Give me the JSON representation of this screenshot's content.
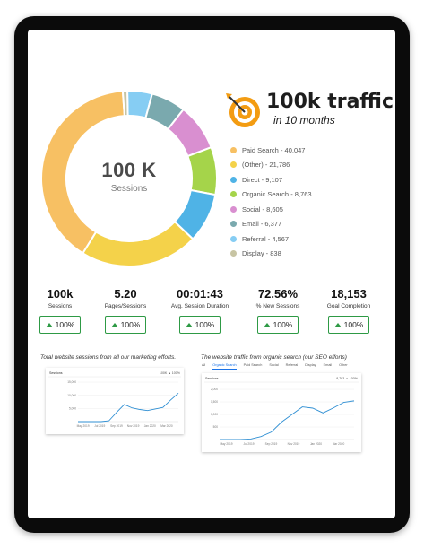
{
  "donut": {
    "center_value": "100 K",
    "center_label": "Sessions",
    "segments": [
      {
        "label": "Paid Search - 40,047",
        "value": 40047,
        "color": "#f7c063"
      },
      {
        "label": "(Other) - 21,786",
        "value": 21786,
        "color": "#f4d24a"
      },
      {
        "label": "Direct - 9,107",
        "value": 9107,
        "color": "#4fb3e6"
      },
      {
        "label": "Organic Search - 8,763",
        "value": 8763,
        "color": "#a5d44a"
      },
      {
        "label": "Social - 8,605",
        "value": 8605,
        "color": "#d98fd0"
      },
      {
        "label": "Email - 6,377",
        "value": 6377,
        "color": "#7aa9ae"
      },
      {
        "label": "Referral - 4,567",
        "value": 4567,
        "color": "#86cdf3"
      },
      {
        "label": "Display - 838",
        "value": 838,
        "color": "#c7c4a3"
      }
    ]
  },
  "logo": {
    "title": "100k traffic",
    "subtitle": "in 10 months",
    "accent": "#f39c12"
  },
  "stats": [
    {
      "value": "100k",
      "label": "Sessions",
      "change": "100%"
    },
    {
      "value": "5.20",
      "label": "Pages/Sessions",
      "change": "100%"
    },
    {
      "value": "00:01:43",
      "label": "Avg. Session Duration",
      "change": "100%"
    },
    {
      "value": "72.56%",
      "label": "% New Sessions",
      "change": "100%"
    },
    {
      "value": "18,153",
      "label": "Goal Completion",
      "change": "100%"
    }
  ],
  "captions": {
    "left": "Total website sessions from all our marketing efforts.",
    "right": "The website traffic from organic search (our SEO efforts)"
  },
  "chart_data": [
    {
      "type": "line",
      "title": "",
      "header_left": "Sessions",
      "header_right": "100K ▲ 100%",
      "ytick_labels": [
        "15,000",
        "10,000",
        "5,000"
      ],
      "ylim": [
        0,
        15000
      ],
      "xtick_labels": [
        "May 2019",
        "Jul 2019",
        "Sep 2019",
        "Nov 2019",
        "Jan 2020",
        "Mar 2020"
      ],
      "series": [
        {
          "values": [
            0,
            0,
            0,
            0,
            300,
            3500,
            6500,
            5200,
            4600,
            4200,
            4800,
            5400,
            8200,
            10800
          ]
        }
      ],
      "color": "#2f8fd3"
    },
    {
      "type": "line",
      "title": "",
      "tabs": [
        "All",
        "Organic Search",
        "Paid Search",
        "Social",
        "Referral",
        "Display",
        "Email",
        "Other"
      ],
      "active_tab": "Organic Search",
      "header_left": "Sessions",
      "header_right": "8,763 ▲ 100%",
      "ytick_labels": [
        "2,000",
        "1,500",
        "1,000",
        "500"
      ],
      "ylim": [
        0,
        2000
      ],
      "xtick_labels": [
        "May 2019",
        "Jul 2019",
        "Sep 2019",
        "Nov 2019",
        "Jan 2020",
        "Mar 2020"
      ],
      "series": [
        {
          "values": [
            0,
            0,
            0,
            20,
            120,
            300,
            700,
            1000,
            1300,
            1250,
            1060,
            1260,
            1480,
            1540
          ]
        }
      ],
      "color": "#2f8fd3"
    }
  ]
}
